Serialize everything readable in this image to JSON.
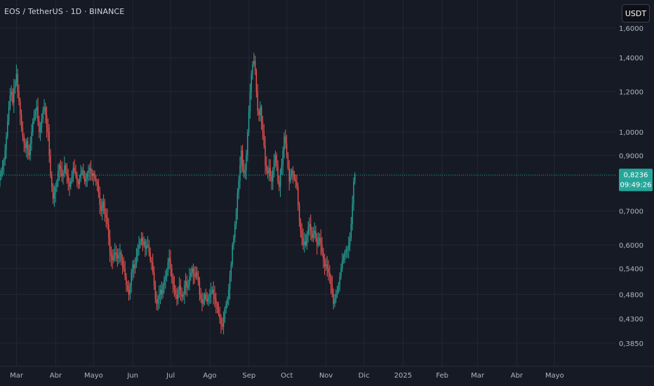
{
  "header": {
    "symbol_title": "EOS / TetherUS · 1D · BINANCE",
    "currency_button": "USDT"
  },
  "price_badge": {
    "price": "0,8236",
    "countdown": "09:49:26"
  },
  "colors": {
    "background": "#161a25",
    "grid": "#232733",
    "up": "#26a69a",
    "down": "#ef5350",
    "axis_text": "#b2b5be",
    "price_line": "#26a69a"
  },
  "chart_data": {
    "type": "candlestick",
    "scale": "log",
    "symbol": "EOS / TetherUS",
    "interval": "1D",
    "exchange": "BINANCE",
    "last_price": 0.8236,
    "ylim": [
      0.37,
      1.62
    ],
    "y_ticks": [
      {
        "value": 1.6,
        "label": "1,6000"
      },
      {
        "value": 1.4,
        "label": "1,4000"
      },
      {
        "value": 1.2,
        "label": "1,2000"
      },
      {
        "value": 1.0,
        "label": "1,0000"
      },
      {
        "value": 0.9,
        "label": "0,9000"
      },
      {
        "value": 0.7,
        "label": "0,7000"
      },
      {
        "value": 0.6,
        "label": "0,6000"
      },
      {
        "value": 0.54,
        "label": "0,5400"
      },
      {
        "value": 0.48,
        "label": "0,4800"
      },
      {
        "value": 0.43,
        "label": "0,4300"
      },
      {
        "value": 0.385,
        "label": "0,3850"
      }
    ],
    "x_ticks": [
      {
        "label": "Mar",
        "index": 2
      },
      {
        "label": "Abr",
        "index": 33
      },
      {
        "label": "Mayo",
        "index": 63
      },
      {
        "label": "Jun",
        "index": 94
      },
      {
        "label": "Jul",
        "index": 124
      },
      {
        "label": "Ago",
        "index": 155
      },
      {
        "label": "Sep",
        "index": 186
      },
      {
        "label": "Oct",
        "index": 216
      },
      {
        "label": "Nov",
        "index": 247
      },
      {
        "label": "Dic",
        "index": 277
      },
      {
        "label": "2025",
        "index": 308
      },
      {
        "label": "Feb",
        "index": 339
      },
      {
        "label": "Mar",
        "index": 367
      },
      {
        "label": "Abr",
        "index": 398
      },
      {
        "label": "Mayo",
        "index": 428
      }
    ],
    "closes": [
      0.82,
      0.84,
      0.86,
      0.88,
      0.92,
      0.98,
      1.05,
      1.12,
      1.18,
      1.2,
      1.14,
      1.22,
      1.25,
      1.3,
      1.2,
      1.15,
      1.08,
      1.02,
      0.98,
      0.95,
      0.93,
      0.96,
      0.92,
      0.9,
      0.95,
      1.0,
      1.05,
      1.08,
      1.1,
      1.12,
      1.05,
      1.0,
      1.02,
      1.06,
      1.1,
      1.12,
      1.08,
      1.02,
      1.0,
      0.9,
      0.82,
      0.78,
      0.74,
      0.76,
      0.78,
      0.8,
      0.84,
      0.86,
      0.85,
      0.82,
      0.83,
      0.86,
      0.84,
      0.82,
      0.8,
      0.78,
      0.8,
      0.83,
      0.85,
      0.84,
      0.82,
      0.8,
      0.79,
      0.81,
      0.83,
      0.84,
      0.82,
      0.8,
      0.81,
      0.83,
      0.84,
      0.85,
      0.83,
      0.82,
      0.83,
      0.81,
      0.8,
      0.79,
      0.76,
      0.72,
      0.7,
      0.73,
      0.71,
      0.69,
      0.68,
      0.66,
      0.62,
      0.58,
      0.57,
      0.56,
      0.575,
      0.58,
      0.57,
      0.565,
      0.575,
      0.58,
      0.56,
      0.55,
      0.54,
      0.52,
      0.5,
      0.49,
      0.48,
      0.5,
      0.53,
      0.55,
      0.54,
      0.55,
      0.57,
      0.59,
      0.6,
      0.61,
      0.62,
      0.6,
      0.61,
      0.59,
      0.6,
      0.6,
      0.58,
      0.56,
      0.555,
      0.53,
      0.5,
      0.47,
      0.46,
      0.47,
      0.48,
      0.49,
      0.48,
      0.5,
      0.515,
      0.52,
      0.53,
      0.555,
      0.565,
      0.54,
      0.52,
      0.5,
      0.49,
      0.48,
      0.47,
      0.49,
      0.5,
      0.48,
      0.475,
      0.48,
      0.5,
      0.51,
      0.495,
      0.5,
      0.52,
      0.53,
      0.54,
      0.525,
      0.52,
      0.53,
      0.52,
      0.51,
      0.48,
      0.47,
      0.46,
      0.47,
      0.48,
      0.47,
      0.465,
      0.475,
      0.48,
      0.485,
      0.49,
      0.48,
      0.47,
      0.46,
      0.45,
      0.44,
      0.43,
      0.42,
      0.415,
      0.43,
      0.45,
      0.46,
      0.47,
      0.49,
      0.52,
      0.55,
      0.6,
      0.62,
      0.66,
      0.7,
      0.76,
      0.8,
      0.86,
      0.92,
      0.85,
      0.83,
      0.84,
      0.9,
      1.0,
      1.1,
      1.2,
      1.3,
      1.36,
      1.38,
      1.32,
      1.2,
      1.1,
      1.08,
      1.12,
      1.05,
      1.0,
      0.94,
      0.86,
      0.84,
      0.83,
      0.85,
      0.82,
      0.8,
      0.84,
      0.88,
      0.9,
      0.86,
      0.8,
      0.78,
      0.84,
      0.86,
      0.92,
      0.98,
      0.95,
      0.9,
      0.85,
      0.8,
      0.82,
      0.84,
      0.83,
      0.81,
      0.8,
      0.78,
      0.72,
      0.67,
      0.64,
      0.62,
      0.6,
      0.61,
      0.6,
      0.63,
      0.65,
      0.66,
      0.64,
      0.62,
      0.63,
      0.64,
      0.62,
      0.6,
      0.61,
      0.62,
      0.6,
      0.58,
      0.56,
      0.545,
      0.55,
      0.54,
      0.53,
      0.52,
      0.5,
      0.48,
      0.46,
      0.47,
      0.48,
      0.49,
      0.5,
      0.52,
      0.54,
      0.56,
      0.57,
      0.58,
      0.585,
      0.59,
      0.6,
      0.62,
      0.66,
      0.72,
      0.8,
      0.8236
    ]
  }
}
